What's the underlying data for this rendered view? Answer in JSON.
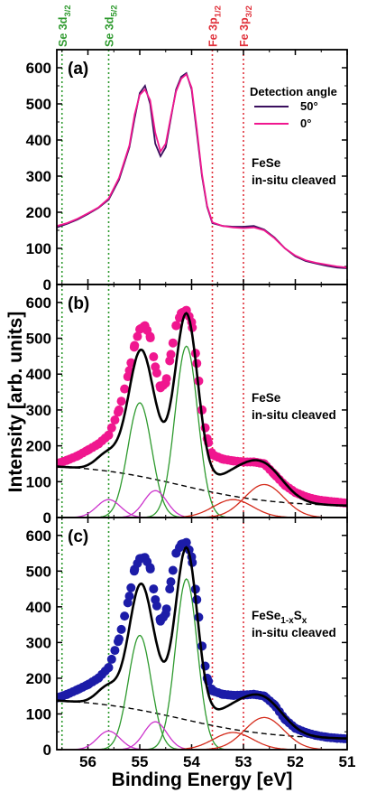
{
  "figure": {
    "xlabel": "Binding Energy [eV]",
    "ylabel": "Intensity [arb. units]"
  },
  "vlines": [
    {
      "x": 56.5,
      "color": "#2e9a2e",
      "base": "Se 3d",
      "sub": "3/2"
    },
    {
      "x": 55.6,
      "color": "#2e9a2e",
      "base": "Se 3d",
      "sub": "5/2"
    },
    {
      "x": 53.6,
      "color": "#e0303a",
      "base": "Fe 3p",
      "sub": "1/2"
    },
    {
      "x": 53.0,
      "color": "#e0303a",
      "base": "Fe 3p",
      "sub": "3/2"
    }
  ],
  "chart_data": [
    {
      "type": "line",
      "panel_label": "(a)",
      "xlim": [
        56.6,
        51.0
      ],
      "ylim": [
        0,
        650
      ],
      "xticks": [
        56,
        55,
        54,
        53,
        52,
        51
      ],
      "yticks": [
        0,
        100,
        200,
        300,
        400,
        500,
        600
      ],
      "legend": {
        "title": "Detection angle",
        "position": "top-right"
      },
      "annotation": [
        "FeSe",
        "in-situ cleaved"
      ],
      "x": [
        56.6,
        56.4,
        56.2,
        56.0,
        55.8,
        55.6,
        55.4,
        55.2,
        55.1,
        55.0,
        54.9,
        54.8,
        54.7,
        54.6,
        54.5,
        54.4,
        54.3,
        54.2,
        54.1,
        54.0,
        53.9,
        53.8,
        53.7,
        53.6,
        53.4,
        53.2,
        53.0,
        52.8,
        52.6,
        52.4,
        52.2,
        52.0,
        51.8,
        51.6,
        51.4,
        51.2,
        51.0
      ],
      "series": [
        {
          "name": "50°",
          "color": "#3a0f5e",
          "values": [
            158,
            168,
            180,
            195,
            212,
            235,
            290,
            380,
            460,
            530,
            550,
            500,
            390,
            355,
            380,
            460,
            540,
            575,
            585,
            540,
            420,
            300,
            215,
            170,
            162,
            160,
            160,
            162,
            152,
            130,
            100,
            78,
            65,
            58,
            52,
            47,
            45
          ]
        },
        {
          "name": "0°",
          "color": "#f0178f",
          "values": [
            162,
            170,
            182,
            197,
            213,
            238,
            295,
            385,
            470,
            525,
            540,
            510,
            420,
            368,
            390,
            465,
            535,
            570,
            582,
            545,
            430,
            305,
            218,
            172,
            162,
            158,
            156,
            158,
            150,
            128,
            100,
            80,
            67,
            60,
            55,
            50,
            47
          ]
        }
      ]
    },
    {
      "type": "scatter",
      "panel_label": "(b)",
      "xlim": [
        56.6,
        51.0
      ],
      "ylim": [
        0,
        650
      ],
      "xticks": [
        56,
        55,
        54,
        53,
        52,
        51
      ],
      "yticks": [
        0,
        100,
        200,
        300,
        400,
        500,
        600
      ],
      "annotation": [
        "FeSe",
        "in-situ cleaved"
      ],
      "marker_color": "#f0178f",
      "x": [
        56.6,
        56.4,
        56.2,
        56.0,
        55.8,
        55.6,
        55.4,
        55.2,
        55.1,
        55.0,
        54.9,
        54.8,
        54.7,
        54.6,
        54.5,
        54.4,
        54.3,
        54.2,
        54.1,
        54.0,
        53.9,
        53.8,
        53.7,
        53.6,
        53.4,
        53.2,
        53.0,
        52.8,
        52.6,
        52.4,
        52.2,
        52.0,
        51.8,
        51.6,
        51.4,
        51.2,
        51.0
      ],
      "values": [
        150,
        160,
        172,
        188,
        205,
        230,
        300,
        410,
        480,
        525,
        535,
        505,
        420,
        362,
        375,
        455,
        535,
        570,
        578,
        545,
        430,
        300,
        220,
        175,
        163,
        158,
        155,
        155,
        150,
        120,
        90,
        70,
        58,
        50,
        46,
        43,
        40
      ],
      "components": [
        {
          "label": "background",
          "color": "#000000",
          "dashed": true,
          "shape": "background",
          "a": 150,
          "b": 30,
          "center": 54.2,
          "width": 0.9
        },
        {
          "label": "Se 3d3/2 (1)",
          "color": "#2e9a2e",
          "shape": "gauss",
          "center": 55.0,
          "amp": 320,
          "sigma": 0.23
        },
        {
          "label": "Se 3d5/2 (1)",
          "color": "#2e9a2e",
          "shape": "gauss",
          "center": 54.1,
          "amp": 478,
          "sigma": 0.22
        },
        {
          "label": "Se 3d3/2 (2)",
          "color": "#cc33cc",
          "shape": "gauss",
          "center": 55.6,
          "amp": 50,
          "sigma": 0.23
        },
        {
          "label": "Se 3d5/2 (2)",
          "color": "#cc33cc",
          "shape": "gauss",
          "center": 54.7,
          "amp": 75,
          "sigma": 0.22
        },
        {
          "label": "Fe 3p1/2",
          "color": "#d42a1a",
          "shape": "gauss",
          "center": 53.2,
          "amp": 50,
          "sigma": 0.38
        },
        {
          "label": "Fe 3p3/2",
          "color": "#d42a1a",
          "shape": "gauss",
          "center": 52.6,
          "amp": 92,
          "sigma": 0.38
        }
      ]
    },
    {
      "type": "scatter",
      "panel_label": "(c)",
      "xlim": [
        56.6,
        51.0
      ],
      "ylim": [
        0,
        650
      ],
      "xticks": [
        56,
        55,
        54,
        53,
        52,
        51
      ],
      "yticks": [
        0,
        100,
        200,
        300,
        400,
        500,
        600
      ],
      "annotation": [
        "FeSe1-xSx",
        "in-situ cleaved"
      ],
      "marker_color": "#1c1ca8",
      "x": [
        56.6,
        56.4,
        56.2,
        56.0,
        55.8,
        55.6,
        55.4,
        55.2,
        55.1,
        55.0,
        54.9,
        54.8,
        54.7,
        54.6,
        54.5,
        54.4,
        54.3,
        54.2,
        54.1,
        54.0,
        53.9,
        53.8,
        53.7,
        53.6,
        53.4,
        53.2,
        53.0,
        52.8,
        52.6,
        52.4,
        52.2,
        52.0,
        51.8,
        51.6,
        51.4,
        51.2,
        51.0
      ],
      "values": [
        145,
        155,
        168,
        182,
        200,
        230,
        310,
        430,
        505,
        535,
        538,
        510,
        420,
        360,
        380,
        470,
        550,
        575,
        580,
        540,
        420,
        290,
        200,
        165,
        155,
        152,
        153,
        155,
        150,
        125,
        85,
        60,
        48,
        40,
        35,
        32,
        30
      ],
      "components": [
        {
          "label": "background",
          "color": "#000000",
          "dashed": true,
          "shape": "background",
          "a": 145,
          "b": 28,
          "center": 54.2,
          "width": 0.9
        },
        {
          "label": "Se 3d3/2 (1)",
          "color": "#2e9a2e",
          "shape": "gauss",
          "center": 55.0,
          "amp": 320,
          "sigma": 0.22
        },
        {
          "label": "Se 3d5/2 (1)",
          "color": "#2e9a2e",
          "shape": "gauss",
          "center": 54.1,
          "amp": 478,
          "sigma": 0.21
        },
        {
          "label": "Se 3d3/2 (2)",
          "color": "#cc33cc",
          "shape": "gauss",
          "center": 55.6,
          "amp": 52,
          "sigma": 0.22
        },
        {
          "label": "Se 3d5/2 (2)",
          "color": "#cc33cc",
          "shape": "gauss",
          "center": 54.7,
          "amp": 78,
          "sigma": 0.22
        },
        {
          "label": "Fe 3p1/2",
          "color": "#d42a1a",
          "shape": "gauss",
          "center": 53.2,
          "amp": 48,
          "sigma": 0.38
        },
        {
          "label": "Fe 3p3/2",
          "color": "#d42a1a",
          "shape": "gauss",
          "center": 52.6,
          "amp": 90,
          "sigma": 0.38
        }
      ]
    }
  ]
}
